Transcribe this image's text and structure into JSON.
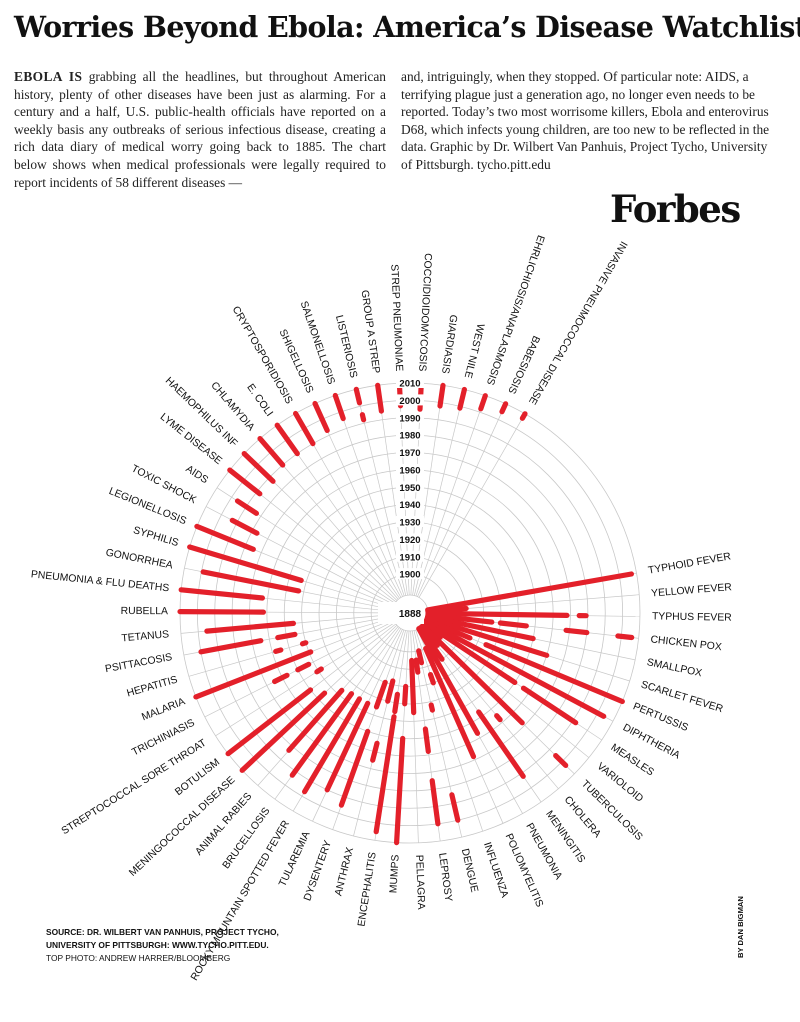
{
  "title": "Worries Beyond Ebola: America’s Disease Watchlist",
  "intro": {
    "lead": "EBOLA IS",
    "left_text": " grabbing all the headlines, but throughout American history, plenty of other diseases have been just as alarming. For a century and a half, U.S. public-health officials have reported on a weekly basis any outbreaks of serious infectious disease, creating a rich data diary of medical worry going back to 1885. The chart below shows when medical professionals were legally required to report incidents of 58 different diseases —",
    "right_text": "and, intriguingly, when they stopped. Of particular note: AIDS, a terrifying plague just a generation ago, no longer even needs to be reported. Today’s two most worrisome killers, Ebola and enterovirus D68, which infects young children, are too new to be reflected in the data. Graphic by Dr. Wilbert Van Panhuis, Project Tycho, University of Pittsburgh. tycho.pitt.edu"
  },
  "brand": "Forbes",
  "source": {
    "line1": "SOURCE: DR. WILBERT VAN PANHUIS, PROJECT TYCHO,",
    "line2": "UNIVERSITY OF PITTSBURGH: WWW.TYCHO.PITT.EDU.",
    "photo": "TOP PHOTO: ANDREW HARRER/BLOOMBERG"
  },
  "byline": "BY DAN BIGMAN",
  "colors": {
    "bar": "#e3202a",
    "grid": "#c8c8c8",
    "text": "#111111"
  },
  "chart_data": {
    "type": "radial-timeline",
    "center_label": "1888",
    "year_ticks": [
      "1900",
      "1910",
      "1920",
      "1930",
      "1940",
      "1950",
      "1960",
      "1970",
      "1980",
      "1990",
      "2000",
      "2010"
    ],
    "r_year_min": 1888,
    "r_year_max": 2010,
    "diseases": [
      {
        "name": "TYPHOID FEVER",
        "periods": [
          [
            1888,
            2007
          ]
        ]
      },
      {
        "name": "YELLOW FEVER",
        "periods": [
          [
            1888,
            1910
          ]
        ]
      },
      {
        "name": "TYPHUS FEVER",
        "periods": [
          [
            1888,
            1968
          ],
          [
            1975,
            1979
          ]
        ]
      },
      {
        "name": "CHICKEN POX",
        "periods": [
          [
            1888,
            1925
          ],
          [
            1930,
            1945
          ],
          [
            1968,
            1980
          ],
          [
            1998,
            2006
          ]
        ]
      },
      {
        "name": "SMALLPOX",
        "periods": [
          [
            1888,
            1950
          ]
        ]
      },
      {
        "name": "SCARLET FEVER",
        "periods": [
          [
            1888,
            1960
          ]
        ]
      },
      {
        "name": "PERTUSSIS",
        "periods": [
          [
            1888,
            1915
          ],
          [
            1925,
            2010
          ]
        ]
      },
      {
        "name": "DIPHTHERIA",
        "periods": [
          [
            1888,
            2004
          ]
        ]
      },
      {
        "name": "MEASLES",
        "periods": [
          [
            1888,
            1950
          ],
          [
            1956,
            1992
          ]
        ]
      },
      {
        "name": "VARIOLOID",
        "periods": [
          [
            1888,
            1900
          ]
        ]
      },
      {
        "name": "TUBERCULOSIS",
        "periods": [
          [
            1888,
            1968
          ],
          [
            1995,
            2003
          ]
        ]
      },
      {
        "name": "CHOLERA",
        "periods": [
          [
            1888,
            1902
          ],
          [
            1955,
            1958
          ]
        ]
      },
      {
        "name": "MENINGITIS",
        "periods": [
          [
            1888,
            1910
          ],
          [
            1947,
            1992
          ]
        ]
      },
      {
        "name": "PNEUMONIA",
        "periods": [
          [
            1888,
            1957
          ]
        ]
      },
      {
        "name": "POLIOMYELITIS",
        "periods": [
          [
            1900,
            1968
          ]
        ]
      },
      {
        "name": "INFLUENZA",
        "periods": [
          [
            1915,
            1920
          ]
        ]
      },
      {
        "name": "DENGUE",
        "periods": [
          [
            1900,
            1907
          ],
          [
            1932,
            1935
          ],
          [
            1985,
            2000
          ]
        ]
      },
      {
        "name": "LEPROSY",
        "periods": [
          [
            1905,
            1912
          ],
          [
            1945,
            1958
          ],
          [
            1975,
            2000
          ]
        ]
      },
      {
        "name": "PELLAGRA",
        "periods": [
          [
            1905,
            1935
          ]
        ]
      },
      {
        "name": "MUMPS",
        "periods": [
          [
            1920,
            1930
          ],
          [
            1950,
            2010
          ]
        ]
      },
      {
        "name": "ENCEPHALITIS",
        "periods": [
          [
            1925,
            1935
          ],
          [
            1938,
            2005
          ]
        ]
      },
      {
        "name": "ANTHRAX",
        "periods": [
          [
            1918,
            1930
          ],
          [
            1955,
            1965
          ]
        ]
      },
      {
        "name": "DYSENTERY",
        "periods": [
          [
            1920,
            1935
          ],
          [
            1950,
            1995
          ]
        ]
      },
      {
        "name": "TULAREMIA",
        "periods": [
          [
            1935,
            1990
          ]
        ]
      },
      {
        "name": "ROCKY MOUNTAIN SPOTTED FEVER",
        "periods": [
          [
            1935,
            1997
          ]
        ]
      },
      {
        "name": "BRUCELLOSIS",
        "periods": [
          [
            1935,
            1993
          ]
        ]
      },
      {
        "name": "ANIMAL RABIES",
        "periods": [
          [
            1937,
            1983
          ]
        ]
      },
      {
        "name": "MENINGOCOCCAL DISEASE",
        "periods": [
          [
            1945,
            2010
          ]
        ]
      },
      {
        "name": "BOTULISM",
        "periods": [
          [
            1950,
            2010
          ]
        ]
      },
      {
        "name": "STREPTOCOCCAL SORE THROAT",
        "periods": [
          [
            1938,
            1941
          ]
        ]
      },
      {
        "name": "TRICHINIASIS",
        "periods": [
          [
            1943,
            1950
          ],
          [
            1957,
            1965
          ]
        ]
      },
      {
        "name": "MALARIA",
        "periods": [
          [
            1939,
            2010
          ]
        ]
      },
      {
        "name": "HEPATITIS",
        "periods": [
          [
            1940,
            1942
          ],
          [
            1955,
            1958
          ]
        ]
      },
      {
        "name": "PSITTACOSIS",
        "periods": [
          [
            1945,
            1955
          ],
          [
            1965,
            2000
          ]
        ]
      },
      {
        "name": "TETANUS",
        "periods": [
          [
            1945,
            1995
          ]
        ]
      },
      {
        "name": "RUBELLA",
        "periods": [
          [
            1962,
            2010
          ]
        ]
      },
      {
        "name": "PNEUMONIA & FLU DEATHS",
        "periods": [
          [
            1963,
            2010
          ]
        ]
      },
      {
        "name": "GONORRHEA",
        "periods": [
          [
            1943,
            1999
          ]
        ]
      },
      {
        "name": "SYPHILIS",
        "periods": [
          [
            1943,
            2010
          ]
        ]
      },
      {
        "name": "LEGIONELLOSIS",
        "periods": [
          [
            1975,
            2010
          ]
        ]
      },
      {
        "name": "TOXIC SHOCK",
        "periods": [
          [
            1977,
            1993
          ]
        ]
      },
      {
        "name": "AIDS",
        "periods": [
          [
            1983,
            1996
          ]
        ]
      },
      {
        "name": "LYME DISEASE",
        "periods": [
          [
            1988,
            2010
          ]
        ]
      },
      {
        "name": "HAEMOPHILUS INF",
        "periods": [
          [
            1987,
            2010
          ]
        ]
      },
      {
        "name": "CHLAMYDIA",
        "periods": [
          [
            1990,
            2010
          ]
        ]
      },
      {
        "name": "E. COLI",
        "periods": [
          [
            1990,
            2010
          ]
        ]
      },
      {
        "name": "CRYPTOSPORIDIOSIS",
        "periods": [
          [
            1990,
            2010
          ]
        ]
      },
      {
        "name": "SHIGELLOSIS",
        "periods": [
          [
            1993,
            2010
          ]
        ]
      },
      {
        "name": "SALMONELLOSIS",
        "periods": [
          [
            1996,
            2010
          ]
        ]
      },
      {
        "name": "LISTERIOSIS",
        "periods": [
          [
            1992,
            1995
          ],
          [
            2002,
            2010
          ]
        ]
      },
      {
        "name": "GROUP A STREP",
        "periods": [
          [
            1995,
            2010
          ]
        ]
      },
      {
        "name": "STREP PNEUMONIAE",
        "periods": [
          [
            1997,
            2010
          ]
        ]
      },
      {
        "name": "COCCIDIOIDOMYCOSIS",
        "periods": [
          [
            1995,
            2010
          ]
        ]
      },
      {
        "name": "GIARDIASIS",
        "periods": [
          [
            1998,
            2010
          ]
        ]
      },
      {
        "name": "WEST NILE",
        "periods": [
          [
            1999,
            2010
          ]
        ]
      },
      {
        "name": "EHRLICHIOSIS/ANAPLASMOSIS",
        "periods": [
          [
            2002,
            2010
          ]
        ]
      },
      {
        "name": "BABESIOSIS",
        "periods": [
          [
            2005,
            2010
          ]
        ]
      },
      {
        "name": "INVASIVE PNEUMOCOCCAL DISEASE",
        "periods": [
          [
            2007,
            2010
          ]
        ]
      }
    ]
  }
}
